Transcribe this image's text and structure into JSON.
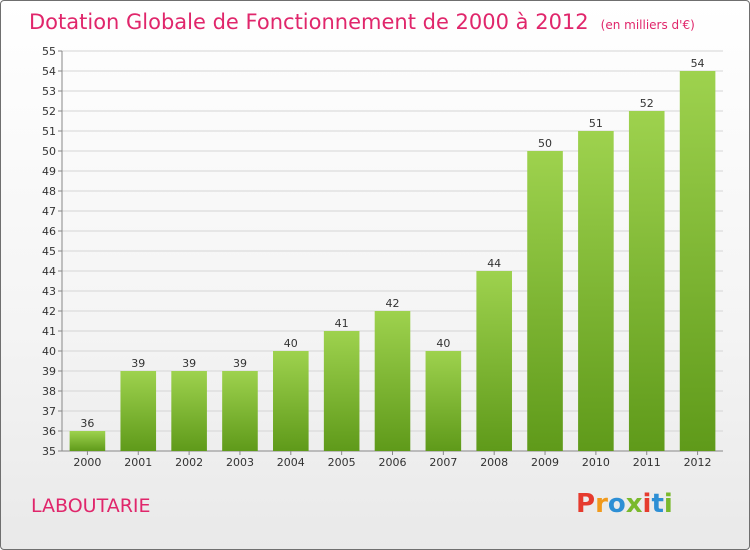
{
  "header": {
    "title": "Dotation Globale de Fonctionnement de 2000 à 2012",
    "subtitle": "(en milliers d'€)"
  },
  "footer": {
    "commune": "LABOUTARIE",
    "logo": [
      "P",
      "r",
      "o",
      "x",
      "i",
      "t",
      "i"
    ],
    "logo_colors": [
      "#e63b2e",
      "#f19a1c",
      "#2d8fd5",
      "#7ab92d",
      "#e63b2e",
      "#2d8fd5",
      "#7ab92d"
    ]
  },
  "colors": {
    "accent": "#e0266b",
    "bar_light": "#9ed24e",
    "bar_dark": "#5f9a1a",
    "grid": "#d5d5d5"
  },
  "chart_data": {
    "type": "bar",
    "title": "Dotation Globale de Fonctionnement de 2000 à 2012",
    "subtitle": "(en milliers d'€)",
    "categories": [
      "2000",
      "2001",
      "2002",
      "2003",
      "2004",
      "2005",
      "2006",
      "2007",
      "2008",
      "2009",
      "2010",
      "2011",
      "2012"
    ],
    "values": [
      36,
      39,
      39,
      39,
      40,
      41,
      42,
      40,
      44,
      50,
      51,
      52,
      54
    ],
    "xlabel": "",
    "ylabel": "",
    "ylim": [
      35,
      55
    ],
    "yticks": [
      35,
      36,
      37,
      38,
      39,
      40,
      41,
      42,
      43,
      44,
      45,
      46,
      47,
      48,
      49,
      50,
      51,
      52,
      53,
      54,
      55
    ],
    "grid": true,
    "data_labels": true
  }
}
